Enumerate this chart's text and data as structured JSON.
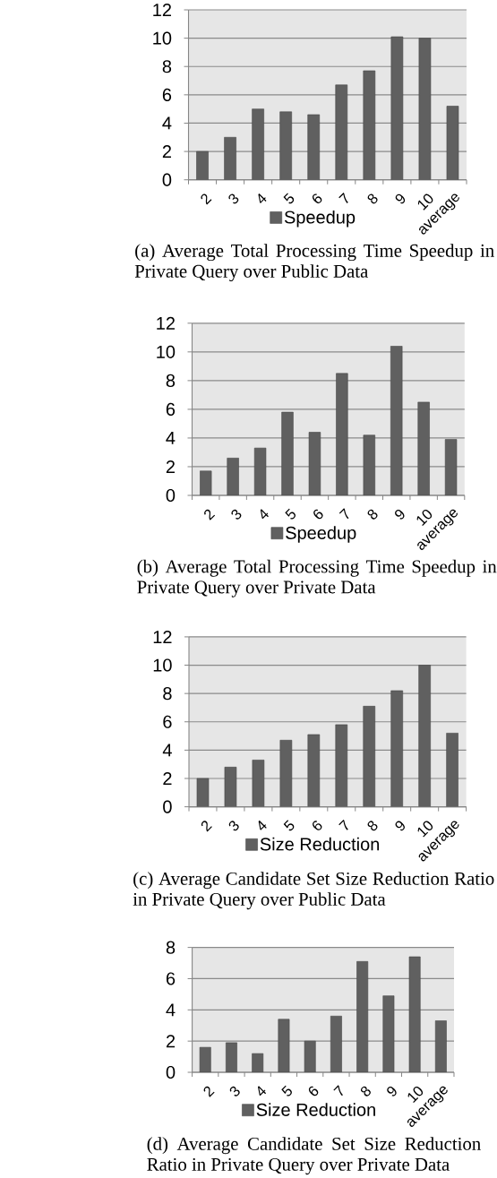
{
  "chart_data": [
    {
      "type": "bar",
      "categories": [
        "2",
        "3",
        "4",
        "5",
        "6",
        "7",
        "8",
        "9",
        "10",
        "average"
      ],
      "series": [
        {
          "name": "Speedup",
          "color": "#606060",
          "values": [
            2.0,
            3.0,
            5.0,
            4.8,
            4.6,
            6.7,
            7.7,
            10.1,
            10.0,
            5.2
          ]
        }
      ],
      "ylim": [
        0,
        12
      ],
      "yticks": [
        0,
        2,
        4,
        6,
        8,
        10,
        12
      ],
      "grid": "y",
      "legend": "bottom",
      "annotations": [
        "(a) Average Total Processing Time Speedup in Private Query over Public Data"
      ]
    },
    {
      "type": "bar",
      "categories": [
        "2",
        "3",
        "4",
        "5",
        "6",
        "7",
        "8",
        "9",
        "10",
        "average"
      ],
      "series": [
        {
          "name": "Speedup",
          "color": "#606060",
          "values": [
            1.7,
            2.6,
            3.3,
            5.8,
            4.4,
            8.5,
            4.2,
            10.4,
            6.5,
            3.9
          ]
        }
      ],
      "ylim": [
        0,
        12
      ],
      "yticks": [
        0,
        2,
        4,
        6,
        8,
        10,
        12
      ],
      "grid": "y",
      "legend": "bottom",
      "annotations": [
        "(b) Average Total Processing Time Speedup in Private Query over Private Data"
      ]
    },
    {
      "type": "bar",
      "categories": [
        "2",
        "3",
        "4",
        "5",
        "6",
        "7",
        "8",
        "9",
        "10",
        "average"
      ],
      "series": [
        {
          "name": "Size Reduction",
          "color": "#606060",
          "values": [
            2.0,
            2.8,
            3.3,
            4.7,
            5.1,
            5.8,
            7.1,
            8.2,
            10.0,
            5.2
          ]
        }
      ],
      "ylim": [
        0,
        12
      ],
      "yticks": [
        0,
        2,
        4,
        6,
        8,
        10,
        12
      ],
      "grid": "y",
      "legend": "bottom",
      "annotations": [
        "(c) Average Candidate Set Size Reduction Ratio in Private Query over Public Data"
      ]
    },
    {
      "type": "bar",
      "categories": [
        "2",
        "3",
        "4",
        "5",
        "6",
        "7",
        "8",
        "9",
        "10",
        "average"
      ],
      "series": [
        {
          "name": "Size Reduction",
          "color": "#606060",
          "values": [
            1.6,
            1.9,
            1.2,
            3.4,
            2.0,
            3.6,
            7.1,
            4.9,
            7.4,
            3.3
          ]
        }
      ],
      "ylim": [
        0,
        8
      ],
      "yticks": [
        0,
        2,
        4,
        6,
        8
      ],
      "grid": "y",
      "legend": "bottom",
      "annotations": [
        "(d) Average Candidate Set Size Reduction Ratio in Private Query over Private Data"
      ]
    }
  ]
}
